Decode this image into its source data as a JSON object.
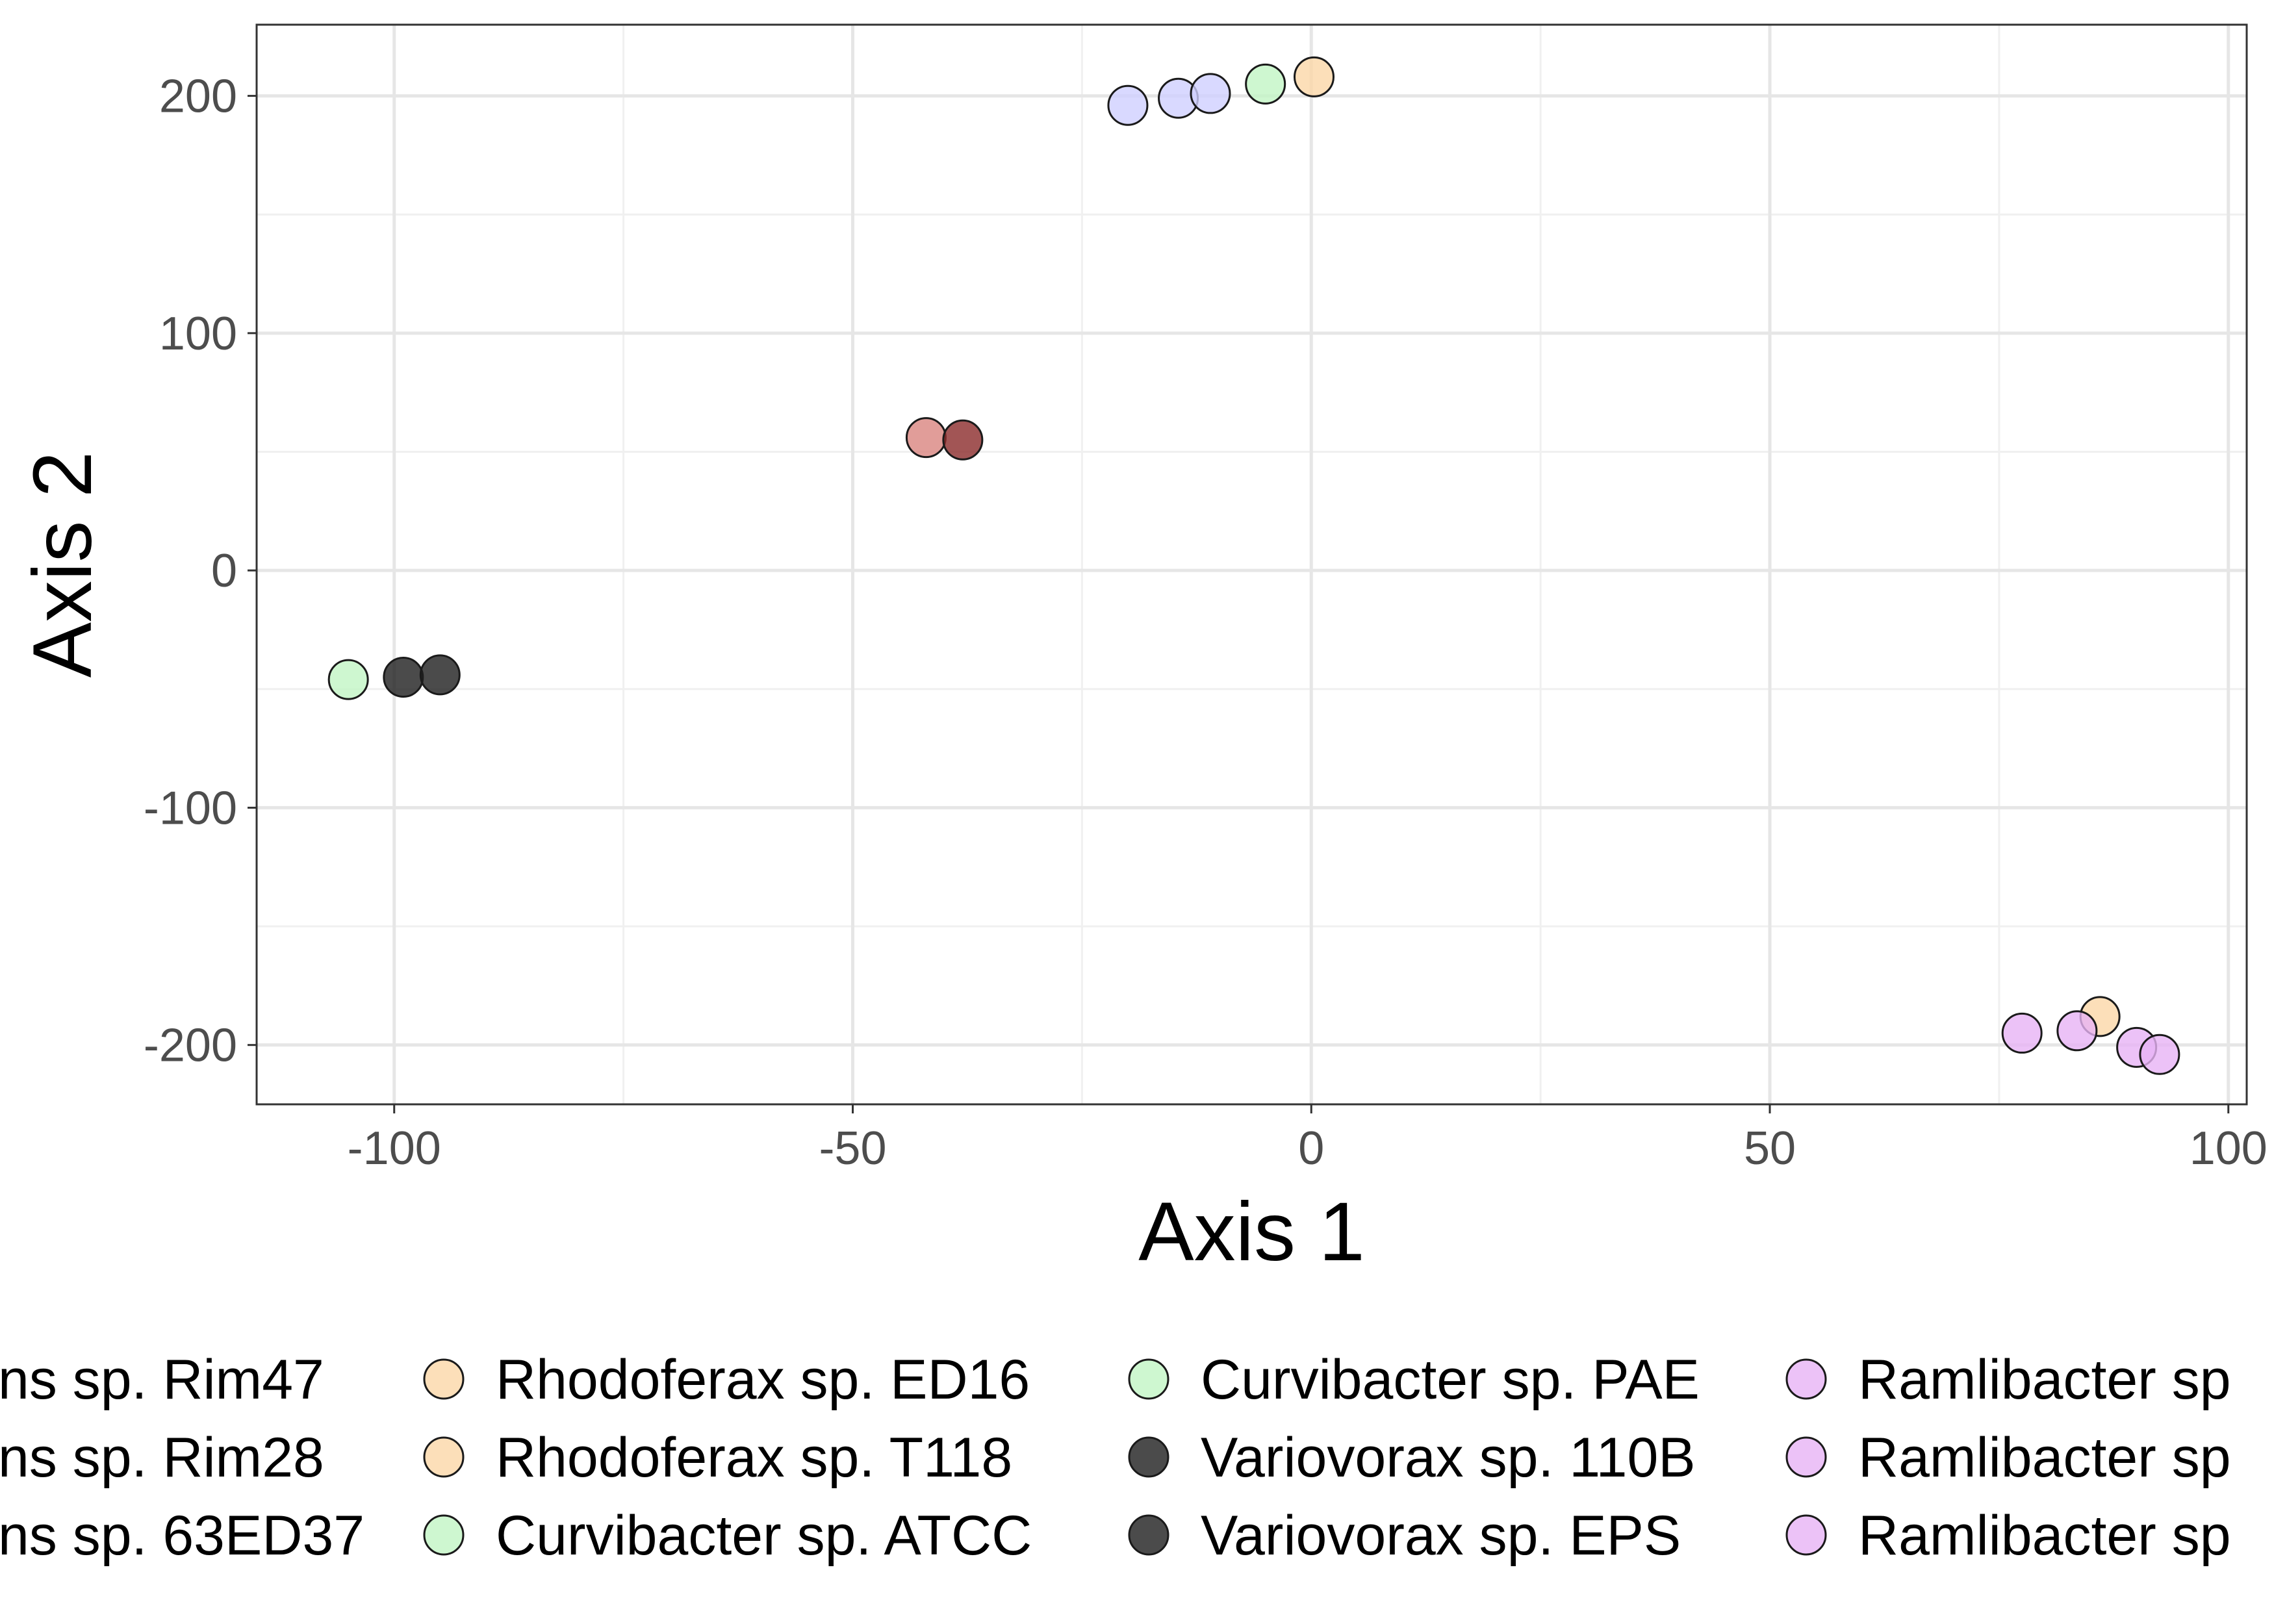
{
  "chart_data": {
    "type": "scatter",
    "xlabel": "Axis 1",
    "ylabel": "Axis 2",
    "xlim": [
      -115,
      102
    ],
    "ylim": [
      -225,
      230
    ],
    "x_ticks": [
      -100,
      -50,
      0,
      50,
      100
    ],
    "y_ticks": [
      -200,
      -100,
      0,
      100,
      200
    ],
    "x_tick_labels": [
      "-100",
      "-50",
      "0",
      "50",
      "100"
    ],
    "y_tick_labels": [
      "-200",
      "-100",
      "0",
      "100",
      "200"
    ],
    "grid": true,
    "legend_position": "bottom",
    "series": [
      {
        "name": "...ns sp. Rim47",
        "color": "#cfcfff",
        "points": [
          [
            -20,
            196
          ]
        ]
      },
      {
        "name": "...ns sp. Rim28",
        "color": "#cfcfff",
        "points": [
          [
            -14.5,
            199
          ]
        ]
      },
      {
        "name": "...ns sp. 63ED37",
        "color": "#cfcfff",
        "points": [
          [
            -11,
            201
          ]
        ]
      },
      {
        "name": "Rhodoferax sp. ED16",
        "color": "#fbd7a8",
        "points": [
          [
            0.3,
            208
          ]
        ]
      },
      {
        "name": "Rhodoferax sp. T118",
        "color": "#fbd7a8",
        "points": [
          [
            86,
            -188
          ]
        ]
      },
      {
        "name": "Curvibacter sp. ATCC",
        "color": "#c2f5c4",
        "points": [
          [
            -5,
            205
          ]
        ]
      },
      {
        "name": "Curvibacter sp. PAE",
        "color": "#c2f5c4",
        "points": [
          [
            -105,
            -46
          ]
        ]
      },
      {
        "name": "Variovorax sp. 110B",
        "color": "#1e1e1e",
        "points": [
          [
            -99,
            -45
          ]
        ]
      },
      {
        "name": "Variovorax sp. EPS",
        "color": "#1e1e1e",
        "points": [
          [
            -95,
            -44
          ]
        ]
      },
      {
        "name": "",
        "color": "#d98480",
        "points": [
          [
            -42,
            56
          ]
        ]
      },
      {
        "name": "",
        "color": "#8b2a2a",
        "points": [
          [
            -38,
            55
          ]
        ]
      },
      {
        "name": "Ramlibacter sp...",
        "color": "#e7b3f5",
        "points": [
          [
            77.5,
            -195
          ]
        ]
      },
      {
        "name": "Ramlibacter sp...",
        "color": "#e7b3f5",
        "points": [
          [
            83.5,
            -194
          ]
        ]
      },
      {
        "name": "Ramlibacter sp...",
        "color": "#e7b3f5",
        "points": [
          [
            90,
            -201
          ]
        ]
      },
      {
        "name": "",
        "color": "#e7b3f5",
        "points": [
          [
            92.5,
            -204
          ]
        ]
      }
    ],
    "legend": [
      {
        "label": "ns sp. Rim47",
        "color": "#cfcfff"
      },
      {
        "label": "ns sp. Rim28",
        "color": "#cfcfff"
      },
      {
        "label": "ns sp. 63ED37",
        "color": "#cfcfff"
      },
      {
        "label": "Rhodoferax sp. ED16",
        "color": "#fbd7a8"
      },
      {
        "label": "Rhodoferax sp. T118",
        "color": "#fbd7a8"
      },
      {
        "label": "Curvibacter sp. ATCC",
        "color": "#c2f5c4"
      },
      {
        "label": "Curvibacter sp. PAE",
        "color": "#c2f5c4"
      },
      {
        "label": "Variovorax sp. 110B",
        "color": "#1e1e1e"
      },
      {
        "label": "Variovorax sp. EPS",
        "color": "#1e1e1e"
      },
      {
        "label": "Ramlibacter sp",
        "color": "#e7b3f5"
      },
      {
        "label": "Ramlibacter sp",
        "color": "#e7b3f5"
      },
      {
        "label": "Ramlibacter sp",
        "color": "#e7b3f5"
      }
    ]
  }
}
